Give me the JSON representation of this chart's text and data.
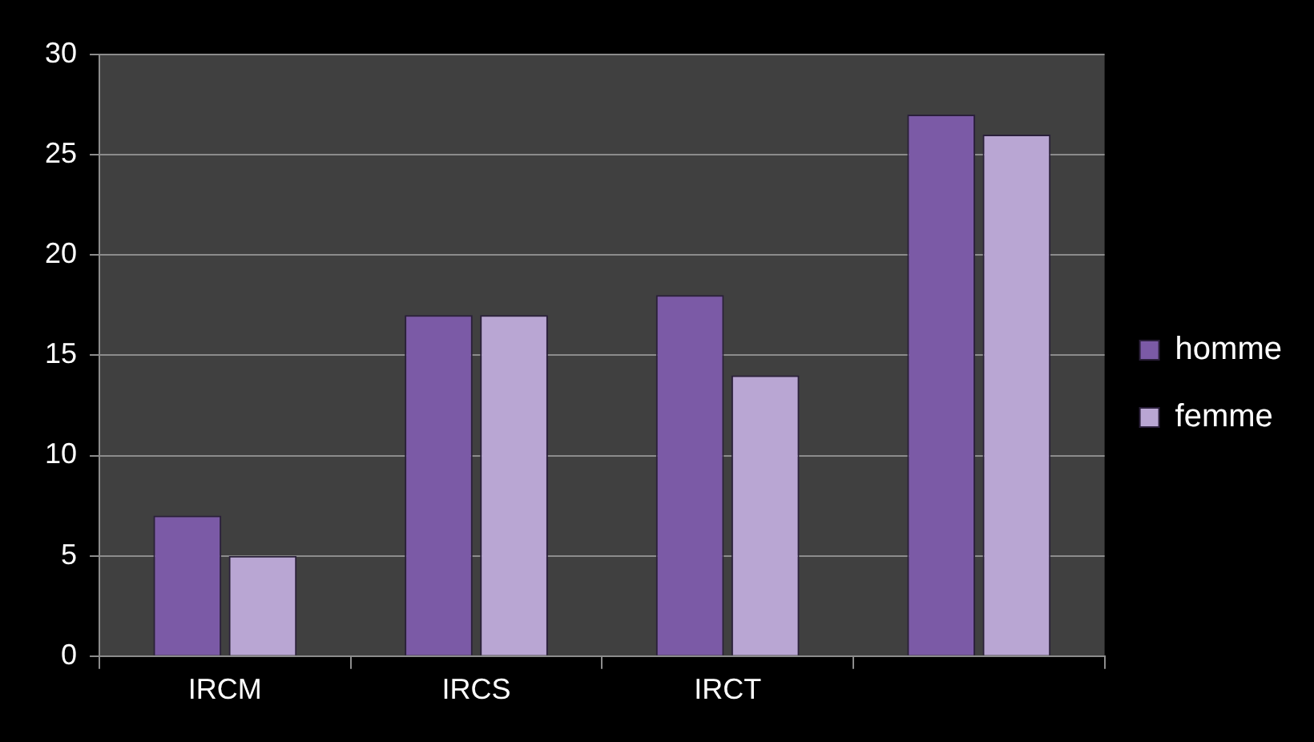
{
  "chart_data": {
    "type": "bar",
    "categories": [
      "IRCM",
      "IRCS",
      "IRCT",
      null
    ],
    "series": [
      {
        "name": "homme",
        "color": "#7b5aa6",
        "values": [
          7,
          17,
          18,
          27
        ]
      },
      {
        "name": "femme",
        "color": "#b9a6d3",
        "values": [
          5,
          17,
          14,
          26
        ]
      }
    ],
    "ylim": [
      0,
      30
    ],
    "yticks": [
      0,
      5,
      10,
      15,
      20,
      25,
      30
    ],
    "grid": "y",
    "legend": "right"
  }
}
